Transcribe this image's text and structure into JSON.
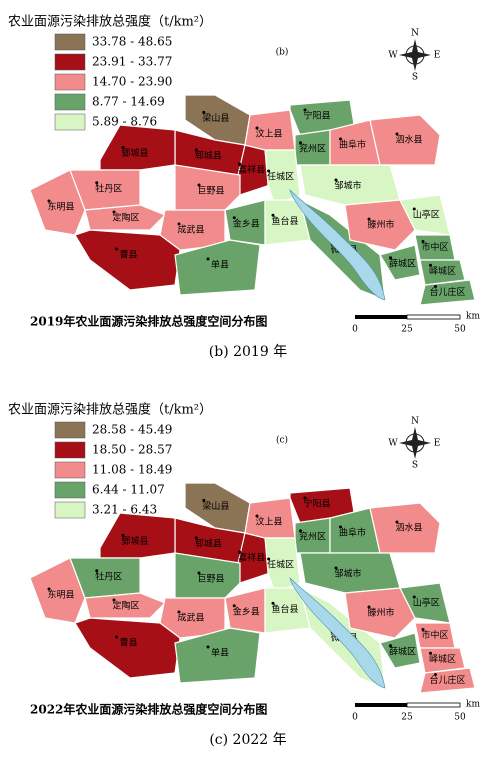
{
  "compass": {
    "north": "N",
    "south": "S",
    "east": "E",
    "west": "W"
  },
  "panels": [
    {
      "legend_title": "农业面源污染排放总强度（t/km²）",
      "panel_label": "(b)",
      "legend": [
        {
          "label": "33.78 - 48.65",
          "color": "#8b7355"
        },
        {
          "label": "23.91 - 33.77",
          "color": "#a50f15"
        },
        {
          "label": "14.70 - 23.90",
          "color": "#f28b8b"
        },
        {
          "label": "8.77 - 14.69",
          "color": "#6aa36a"
        },
        {
          "label": "5.89 - 8.76",
          "color": "#d8f5c4"
        }
      ],
      "regions": [
        {
          "name": "梁山县",
          "class": 0
        },
        {
          "name": "郓城县",
          "class": 1
        },
        {
          "name": "鄄城县",
          "class": 1
        },
        {
          "name": "嘉祥县",
          "class": 1
        },
        {
          "name": "汶上县",
          "class": 2
        },
        {
          "name": "宁阳县",
          "class": 3
        },
        {
          "name": "兖州区",
          "class": 3
        },
        {
          "name": "曲阜市",
          "class": 2
        },
        {
          "name": "泗水县",
          "class": 2
        },
        {
          "name": "邹城市",
          "class": 4
        },
        {
          "name": "任城区",
          "class": 4
        },
        {
          "name": "东明县",
          "class": 2
        },
        {
          "name": "牡丹区",
          "class": 2
        },
        {
          "name": "巨野县",
          "class": 2
        },
        {
          "name": "定陶区",
          "class": 2
        },
        {
          "name": "成武县",
          "class": 2
        },
        {
          "name": "曹县",
          "class": 1
        },
        {
          "name": "单县",
          "class": 3
        },
        {
          "name": "金乡县",
          "class": 3
        },
        {
          "name": "鱼台县",
          "class": 4
        },
        {
          "name": "微山县",
          "class": 3
        },
        {
          "name": "滕州市",
          "class": 2
        },
        {
          "name": "山亭区",
          "class": 4
        },
        {
          "name": "薛城区",
          "class": 3
        },
        {
          "name": "市中区",
          "class": 3
        },
        {
          "name": "峄城区",
          "class": 3
        },
        {
          "name": "台儿庄区",
          "class": 3
        }
      ],
      "map_title": "2019年农业面源污染排放总强度空间分布图",
      "scale": {
        "labels": [
          "0",
          "25",
          "50"
        ],
        "unit": "km"
      },
      "caption": "(b) 2019 年"
    },
    {
      "legend_title": "农业面源污染排放总强度（t/km²）",
      "panel_label": "(c)",
      "legend": [
        {
          "label": "28.58 - 45.49",
          "color": "#8b7355"
        },
        {
          "label": "18.50 - 28.57",
          "color": "#a50f15"
        },
        {
          "label": "11.08 - 18.49",
          "color": "#f28b8b"
        },
        {
          "label": "6.44 - 11.07",
          "color": "#6aa36a"
        },
        {
          "label": "3.21 - 6.43",
          "color": "#d8f5c4"
        }
      ],
      "regions": [
        {
          "name": "梁山县",
          "class": 0
        },
        {
          "name": "郓城县",
          "class": 1
        },
        {
          "name": "鄄城县",
          "class": 1
        },
        {
          "name": "嘉祥县",
          "class": 1
        },
        {
          "name": "汶上县",
          "class": 2
        },
        {
          "name": "宁阳县",
          "class": 1
        },
        {
          "name": "兖州区",
          "class": 3
        },
        {
          "name": "曲阜市",
          "class": 3
        },
        {
          "name": "泗水县",
          "class": 2
        },
        {
          "name": "邹城市",
          "class": 3
        },
        {
          "name": "任城区",
          "class": 4
        },
        {
          "name": "东明县",
          "class": 2
        },
        {
          "name": "牡丹区",
          "class": 3
        },
        {
          "name": "巨野县",
          "class": 3
        },
        {
          "name": "定陶区",
          "class": 2
        },
        {
          "name": "成武县",
          "class": 2
        },
        {
          "name": "曹县",
          "class": 1
        },
        {
          "name": "单县",
          "class": 3
        },
        {
          "name": "金乡县",
          "class": 2
        },
        {
          "name": "鱼台县",
          "class": 4
        },
        {
          "name": "微山县",
          "class": 4
        },
        {
          "name": "滕州市",
          "class": 2
        },
        {
          "name": "山亭区",
          "class": 3
        },
        {
          "name": "薛城区",
          "class": 3
        },
        {
          "name": "市中区",
          "class": 2
        },
        {
          "name": "峄城区",
          "class": 2
        },
        {
          "name": "台儿庄区",
          "class": 2
        }
      ],
      "map_title": "2022年农业面源污染排放总强度空间分布图",
      "scale": {
        "labels": [
          "0",
          "25",
          "50"
        ],
        "unit": "km"
      },
      "caption": "(c) 2022 年"
    }
  ]
}
